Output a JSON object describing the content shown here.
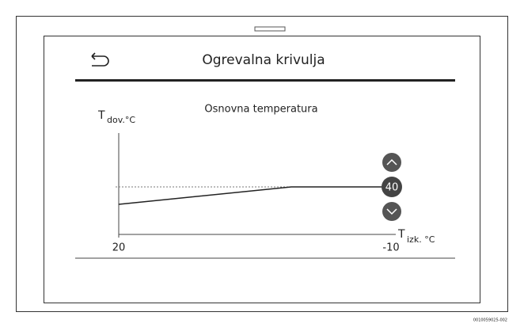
{
  "header": {
    "title": "Ogrevalna krivulja"
  },
  "graph": {
    "subtitle": "Osnovna temperatura",
    "y_label": {
      "symbol": "T",
      "subscript": "dov.°C"
    },
    "x_label": {
      "symbol": "T",
      "subscript": "izk. °C"
    },
    "x_start": "20",
    "x_end": "-10",
    "setpoint": "40"
  },
  "footer": {
    "code": "0010059025-002"
  }
}
